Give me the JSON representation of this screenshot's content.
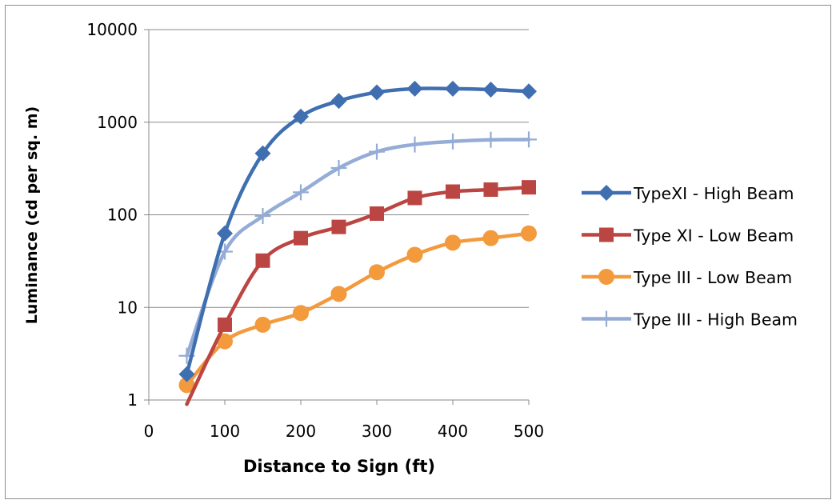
{
  "chart_data": {
    "type": "line",
    "title": "",
    "xlabel": "Distance to Sign (ft)",
    "ylabel": "Luminance (cd per sq. m)",
    "yscale": "log",
    "xlim": [
      0,
      500
    ],
    "ylim": [
      1,
      10000
    ],
    "xticks": [
      0,
      100,
      200,
      300,
      400,
      500
    ],
    "yticks": [
      1,
      10,
      100,
      1000,
      10000
    ],
    "grid": "horizontal",
    "legend_position": "right",
    "x": [
      50,
      100,
      150,
      200,
      250,
      300,
      350,
      400,
      450,
      500
    ],
    "series": [
      {
        "name": "TypeXI - High Beam",
        "color": "#3f6fb0",
        "marker": "diamond",
        "values": [
          1.9,
          63,
          460,
          1150,
          1700,
          2100,
          2300,
          2300,
          2250,
          2150
        ]
      },
      {
        "name": "Type XI - Low Beam",
        "color": "#bb4542",
        "marker": "square",
        "values": [
          0.9,
          6.5,
          32,
          56,
          74,
          103,
          152,
          178,
          187,
          198
        ]
      },
      {
        "name": "Type III - Low Beam",
        "color": "#f29a3c",
        "marker": "circle",
        "values": [
          1.45,
          4.3,
          6.5,
          8.7,
          14,
          24,
          37,
          50,
          56,
          63
        ]
      },
      {
        "name": "Type III - High Beam",
        "color": "#94acd6",
        "marker": "plus",
        "values": [
          3.0,
          40,
          97,
          175,
          320,
          480,
          575,
          620,
          645,
          650
        ]
      }
    ]
  }
}
